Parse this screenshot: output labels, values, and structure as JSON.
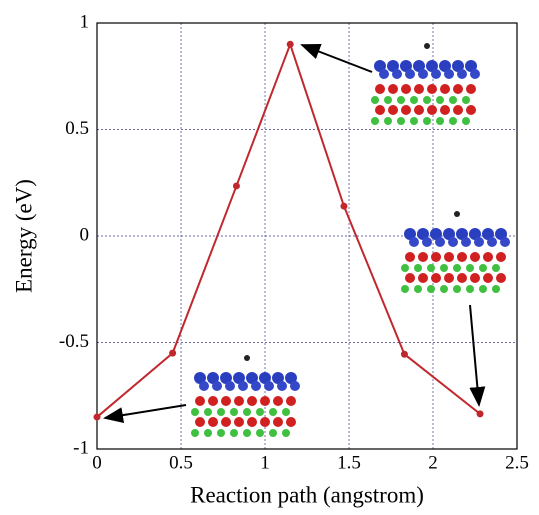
{
  "chart_data": {
    "type": "line",
    "x_label": "Reaction path (angstrom)",
    "y_label": "Energy (eV)",
    "x": [
      0,
      0.45,
      0.83,
      1.15,
      1.47,
      1.83,
      2.28
    ],
    "series": [
      {
        "color": "#c0282d",
        "values": [
          -0.85,
          -0.55,
          0.235,
          0.9,
          0.14,
          -0.555,
          -0.835
        ]
      }
    ],
    "xlim": [
      0,
      2.5
    ],
    "xticks": [
      0,
      0.5,
      1,
      1.5,
      2,
      2.5
    ],
    "ylim": [
      -1,
      1
    ],
    "yticks": [
      -1,
      -0.5,
      0,
      0.5,
      1
    ],
    "grid": true
  }
}
